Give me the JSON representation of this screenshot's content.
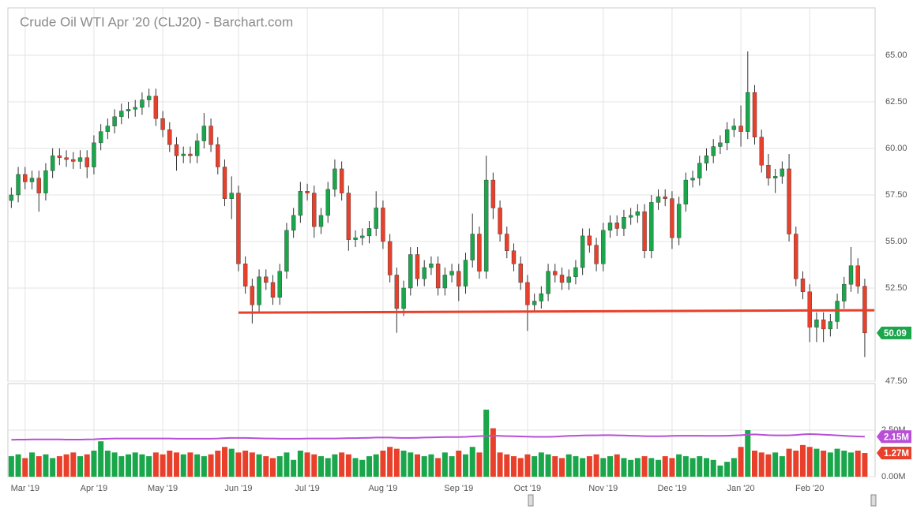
{
  "chart_data": {
    "type": "candlestick",
    "title": "Crude Oil WTI Apr '20 (CLJ20) - Barchart.com",
    "xlim": [
      -0.5,
      125.5
    ],
    "xticks": [
      {
        "value": 2,
        "label": "Mar '19"
      },
      {
        "value": 12,
        "label": "Apr '19"
      },
      {
        "value": 22,
        "label": "May '19"
      },
      {
        "value": 33,
        "label": "Jun '19"
      },
      {
        "value": 43,
        "label": "Jul '19"
      },
      {
        "value": 54,
        "label": "Aug '19"
      },
      {
        "value": 65,
        "label": "Sep '19"
      },
      {
        "value": 75,
        "label": "Oct '19"
      },
      {
        "value": 86,
        "label": "Nov '19"
      },
      {
        "value": 96,
        "label": "Dec '19"
      },
      {
        "value": 106,
        "label": "Jan '20"
      },
      {
        "value": 116,
        "label": "Feb '20"
      }
    ],
    "ylim": [
      47.5,
      67.54
    ],
    "yticks": [
      {
        "value": 47.5,
        "label": "47.50"
      },
      {
        "value": 52.5,
        "label": "52.50"
      },
      {
        "value": 55,
        "label": "55.00"
      },
      {
        "value": 57.5,
        "label": "57.50"
      },
      {
        "value": 60,
        "label": "60.00"
      },
      {
        "value": 62.5,
        "label": "62.50"
      },
      {
        "value": 65,
        "label": "65.00"
      }
    ],
    "grid": true,
    "up_color": "#1aa64a",
    "down_color": "#e8402a",
    "open": [
      57.2,
      57.5,
      58.6,
      58.2,
      58.4,
      57.6,
      58.8,
      59.6,
      59.5,
      59.4,
      59.3,
      59.5,
      59.0,
      60.3,
      60.9,
      61.2,
      61.7,
      62.0,
      62.1,
      62.2,
      62.6,
      62.8,
      61.6,
      61.0,
      60.2,
      59.6,
      59.7,
      59.6,
      60.4,
      61.2,
      60.2,
      59.0,
      57.3,
      57.6,
      53.8,
      52.6,
      51.6,
      53.1,
      52.8,
      52.0,
      53.4,
      55.6,
      56.4,
      57.7,
      57.6,
      55.8,
      56.4,
      57.8,
      58.9,
      57.6,
      55.1,
      55.2,
      55.3,
      55.7,
      56.8,
      55.0,
      53.2,
      51.4,
      52.5,
      54.3,
      53.0,
      53.6,
      53.8,
      52.5,
      53.2,
      53.4,
      52.6,
      54.0,
      55.4,
      53.4,
      58.3,
      56.8,
      55.4,
      54.5,
      53.8,
      52.8,
      51.6,
      51.8,
      52.2,
      53.4,
      53.2,
      52.8,
      53.1,
      53.6,
      55.3,
      54.8,
      53.8,
      55.6,
      56.0,
      55.7,
      56.3,
      56.4,
      56.6,
      54.5,
      57.1,
      57.4,
      57.3,
      55.2,
      57.0,
      58.3,
      58.4,
      59.2,
      59.6,
      60.1,
      60.3,
      61.0,
      61.2,
      60.9,
      63.0,
      60.6,
      59.1,
      58.4,
      58.5,
      58.9,
      55.4,
      53.0,
      52.3,
      50.4,
      50.8,
      50.3,
      50.7,
      51.8,
      52.7,
      53.7,
      52.6
    ],
    "high": [
      57.9,
      59.0,
      59.0,
      58.8,
      58.8,
      59.2,
      60.0,
      60.0,
      59.9,
      59.8,
      59.9,
      59.9,
      60.7,
      61.3,
      61.6,
      62.1,
      62.4,
      62.5,
      62.6,
      63.0,
      63.2,
      63.2,
      62.0,
      61.4,
      60.6,
      60.1,
      60.1,
      60.8,
      61.9,
      61.6,
      60.6,
      59.4,
      58.5,
      58.0,
      54.2,
      53.0,
      53.5,
      53.5,
      53.2,
      53.8,
      56.0,
      56.8,
      58.2,
      58.1,
      58.0,
      56.8,
      58.2,
      59.4,
      59.3,
      58.0,
      55.6,
      55.7,
      56.1,
      57.7,
      57.2,
      55.4,
      53.6,
      52.9,
      54.7,
      54.7,
      54.0,
      54.2,
      54.2,
      53.6,
      53.8,
      53.8,
      54.4,
      56.5,
      55.8,
      59.6,
      58.7,
      57.2,
      55.8,
      54.9,
      54.2,
      53.2,
      52.2,
      52.6,
      53.8,
      53.8,
      53.6,
      53.5,
      54.0,
      55.7,
      55.7,
      55.2,
      56.0,
      56.4,
      56.4,
      56.7,
      56.8,
      57.0,
      57.0,
      57.5,
      57.8,
      57.8,
      57.7,
      57.4,
      58.7,
      58.8,
      59.6,
      60.0,
      60.5,
      60.7,
      61.4,
      61.6,
      62.3,
      65.2,
      63.4,
      61.0,
      59.7,
      58.9,
      59.3,
      59.7,
      55.8,
      53.4,
      52.7,
      51.2,
      51.2,
      51.1,
      52.2,
      53.1,
      54.7,
      54.1,
      53.0
    ],
    "low": [
      56.8,
      57.1,
      57.8,
      57.8,
      56.6,
      57.2,
      58.4,
      59.1,
      59.0,
      58.9,
      58.9,
      58.4,
      58.6,
      59.9,
      60.5,
      60.8,
      61.3,
      61.6,
      61.7,
      61.8,
      62.2,
      61.2,
      60.6,
      59.8,
      58.8,
      59.2,
      59.2,
      59.2,
      60.0,
      59.8,
      58.6,
      56.9,
      56.2,
      53.4,
      52.2,
      50.6,
      51.2,
      52.4,
      51.6,
      51.6,
      53.0,
      55.2,
      56.0,
      57.2,
      55.2,
      55.4,
      56.0,
      57.4,
      57.2,
      54.5,
      54.7,
      54.8,
      54.9,
      55.3,
      54.6,
      52.8,
      50.1,
      51.0,
      52.1,
      52.6,
      52.6,
      53.2,
      52.1,
      52.1,
      52.8,
      51.8,
      52.2,
      53.6,
      53.0,
      53.0,
      56.2,
      55.0,
      54.1,
      53.4,
      52.4,
      50.2,
      51.2,
      51.4,
      51.8,
      52.8,
      52.4,
      52.4,
      52.7,
      53.2,
      54.4,
      53.4,
      53.4,
      55.2,
      55.3,
      55.3,
      55.9,
      56.0,
      54.1,
      54.1,
      56.7,
      56.9,
      54.6,
      54.8,
      56.6,
      57.9,
      58.0,
      58.8,
      59.2,
      59.7,
      59.9,
      60.6,
      60.1,
      60.5,
      60.2,
      58.7,
      58.0,
      57.6,
      58.1,
      55.0,
      52.6,
      51.9,
      49.6,
      49.6,
      49.6,
      49.9,
      50.3,
      51.4,
      52.3,
      52.2,
      48.8
    ],
    "close": [
      57.5,
      58.6,
      58.2,
      58.4,
      57.6,
      58.8,
      59.6,
      59.5,
      59.4,
      59.3,
      59.5,
      59.0,
      60.3,
      60.9,
      61.2,
      61.7,
      62.0,
      62.1,
      62.2,
      62.6,
      62.8,
      61.6,
      61.0,
      60.2,
      59.6,
      59.7,
      59.6,
      60.4,
      61.2,
      60.2,
      59.0,
      57.3,
      57.6,
      53.8,
      52.6,
      51.6,
      53.1,
      52.8,
      52.0,
      53.4,
      55.6,
      56.4,
      57.7,
      57.6,
      55.8,
      56.4,
      57.8,
      58.9,
      57.6,
      55.1,
      55.2,
      55.3,
      55.7,
      56.8,
      55.0,
      53.2,
      51.4,
      52.5,
      54.3,
      53.0,
      53.6,
      53.8,
      52.5,
      53.2,
      53.4,
      52.6,
      54.0,
      55.4,
      53.4,
      58.3,
      56.8,
      55.4,
      54.5,
      53.8,
      52.8,
      51.6,
      51.8,
      52.2,
      53.4,
      53.2,
      52.8,
      53.1,
      53.6,
      55.3,
      54.8,
      53.8,
      55.6,
      56.0,
      55.7,
      56.3,
      56.4,
      56.6,
      54.5,
      57.1,
      57.4,
      57.3,
      55.2,
      57.0,
      58.3,
      58.4,
      59.2,
      59.6,
      60.1,
      60.3,
      61.0,
      61.2,
      60.9,
      63.0,
      60.6,
      59.1,
      58.4,
      58.5,
      58.9,
      55.4,
      53.0,
      52.3,
      50.4,
      50.8,
      50.3,
      50.7,
      51.8,
      52.7,
      53.7,
      52.6,
      50.09
    ],
    "trendline": {
      "x": [
        33,
        125.4
      ],
      "y": [
        51.18,
        51.31
      ],
      "color": "#e8402a"
    },
    "volume": {
      "ylim": [
        0,
        5.0
      ],
      "yticks": [
        {
          "value": 0,
          "label": "0.00M"
        },
        {
          "value": 2.5,
          "label": "2.50M"
        }
      ],
      "values": [
        1.1,
        1.2,
        1.0,
        1.3,
        1.1,
        1.2,
        1.0,
        1.1,
        1.2,
        1.3,
        1.1,
        1.2,
        1.4,
        1.9,
        1.4,
        1.3,
        1.1,
        1.2,
        1.3,
        1.2,
        1.1,
        1.3,
        1.2,
        1.4,
        1.3,
        1.2,
        1.3,
        1.2,
        1.1,
        1.2,
        1.4,
        1.6,
        1.5,
        1.3,
        1.4,
        1.3,
        1.2,
        1.1,
        1.0,
        1.1,
        1.3,
        0.9,
        1.4,
        1.3,
        1.2,
        1.1,
        1.0,
        1.2,
        1.3,
        1.2,
        1.0,
        0.9,
        1.1,
        1.2,
        1.4,
        1.6,
        1.5,
        1.4,
        1.3,
        1.2,
        1.1,
        1.2,
        1.0,
        1.3,
        1.1,
        1.4,
        1.2,
        1.6,
        1.3,
        3.6,
        2.6,
        1.3,
        1.2,
        1.1,
        1.0,
        1.2,
        1.1,
        1.3,
        1.2,
        1.1,
        1.0,
        1.2,
        1.1,
        1.0,
        1.1,
        1.2,
        1.0,
        1.1,
        1.2,
        1.0,
        0.9,
        1.0,
        1.1,
        1.0,
        0.9,
        1.1,
        1.0,
        1.2,
        1.1,
        1.0,
        1.1,
        1.0,
        0.9,
        0.6,
        0.8,
        1.0,
        1.6,
        2.5,
        1.4,
        1.3,
        1.2,
        1.3,
        1.1,
        1.5,
        1.4,
        1.7,
        1.6,
        1.5,
        1.4,
        1.3,
        1.5,
        1.4,
        1.3,
        1.4,
        1.27
      ],
      "last_value_label": "1.27M",
      "ma": [
        1.98,
        1.99,
        1.99,
        2.0,
        2.0,
        2.0,
        2.0,
        2.0,
        1.99,
        1.99,
        1.99,
        2.0,
        2.01,
        2.03,
        2.04,
        2.05,
        2.05,
        2.05,
        2.05,
        2.05,
        2.05,
        2.05,
        2.05,
        2.05,
        2.04,
        2.04,
        2.04,
        2.04,
        2.04,
        2.04,
        2.05,
        2.07,
        2.08,
        2.08,
        2.08,
        2.07,
        2.06,
        2.05,
        2.05,
        2.04,
        2.04,
        2.04,
        2.04,
        2.05,
        2.05,
        2.05,
        2.05,
        2.05,
        2.06,
        2.07,
        2.07,
        2.08,
        2.09,
        2.1,
        2.1,
        2.1,
        2.09,
        2.08,
        2.08,
        2.09,
        2.1,
        2.11,
        2.12,
        2.13,
        2.13,
        2.13,
        2.14,
        2.16,
        2.18,
        2.2,
        2.2,
        2.19,
        2.18,
        2.17,
        2.16,
        2.15,
        2.14,
        2.14,
        2.14,
        2.15,
        2.17,
        2.19,
        2.2,
        2.21,
        2.22,
        2.22,
        2.23,
        2.23,
        2.22,
        2.21,
        2.2,
        2.19,
        2.18,
        2.17,
        2.17,
        2.18,
        2.19,
        2.2,
        2.2,
        2.2,
        2.2,
        2.19,
        2.19,
        2.19,
        2.2,
        2.21,
        2.23,
        2.26,
        2.27,
        2.25,
        2.23,
        2.22,
        2.22,
        2.22,
        2.24,
        2.27,
        2.29,
        2.28,
        2.26,
        2.24,
        2.22,
        2.2,
        2.18,
        2.16,
        2.15
      ],
      "ma_color": "#b84fd6",
      "ma_last_label": "2.15M"
    }
  }
}
